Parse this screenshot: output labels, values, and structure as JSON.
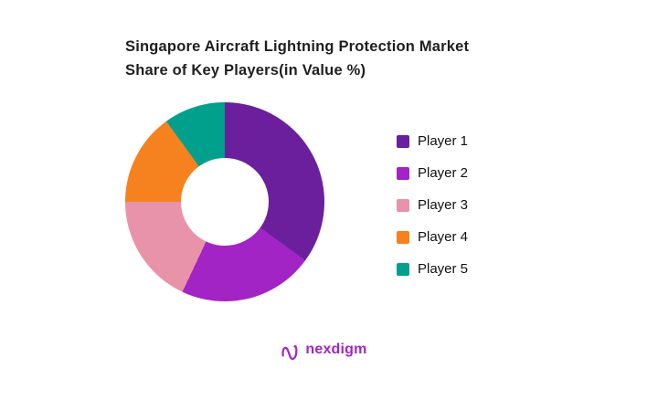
{
  "title": {
    "line1": "Singapore Aircraft Lightning Protection Market",
    "line2": "Share of Key Players(in Value %)"
  },
  "chart_data": {
    "type": "pie",
    "subtype": "donut",
    "title": "Singapore Aircraft Lightning Protection Market Share of Key Players(in Value %)",
    "categories": [
      "Player 1",
      "Player 2",
      "Player 3",
      "Player 4",
      "Player 5"
    ],
    "values": [
      35,
      22,
      18,
      15,
      10
    ],
    "unit": "percent",
    "colors": [
      "#6b1f9c",
      "#a224c4",
      "#e893aa",
      "#f5821f",
      "#00a08c"
    ],
    "legend_position": "right",
    "start_angle_deg": 0,
    "direction": "clockwise",
    "donut_hole_ratio": 0.44,
    "data_labels": false,
    "grid": false
  },
  "logo": {
    "text": "nexdigm",
    "color": "#a224c4"
  }
}
